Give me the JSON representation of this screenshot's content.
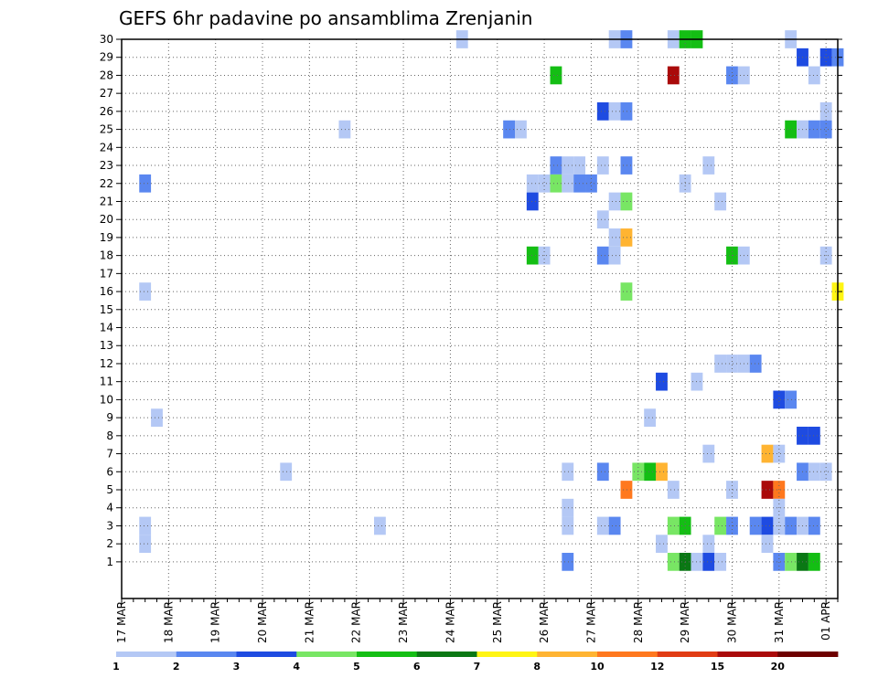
{
  "chart_data": {
    "type": "heatmap",
    "title": "GEFS 6hr padavine po ansamblima Zrenjanin",
    "ylabel": "",
    "xlabel": "",
    "y_range": [
      0,
      30
    ],
    "y_ticks": [
      "30",
      "29",
      "28",
      "27",
      "26",
      "25",
      "24",
      "23",
      "22",
      "21",
      "20",
      "19",
      "18",
      "17",
      "16",
      "15",
      "14",
      "13",
      "12",
      "11",
      "10",
      "9",
      "8",
      "7",
      "6",
      "5",
      "4",
      "3",
      "2",
      "1"
    ],
    "x_ticks": [
      "17 MAR",
      "18 MAR",
      "19 MAR",
      "20 MAR",
      "21 MAR",
      "22 MAR",
      "23 MAR",
      "24 MAR",
      "25 MAR",
      "26 MAR",
      "27 MAR",
      "28 MAR",
      "29 MAR",
      "30 MAR",
      "31 MAR",
      "01 APR"
    ],
    "x_range_steps": [
      0,
      61
    ],
    "grid": true,
    "legend": {
      "placement": "bottom",
      "levels": [
        "1",
        "2",
        "3",
        "4",
        "5",
        "6",
        "7",
        "8",
        "10",
        "12",
        "15",
        "20"
      ],
      "colors": [
        "#b4c8f5",
        "#5a87f0",
        "#1e4be1",
        "#78e664",
        "#14be14",
        "#0a7814",
        "#fff514",
        "#ffb432",
        "#ff781e",
        "#e13c14",
        "#aa0a0a",
        "#6e0000"
      ]
    },
    "cells": [
      {
        "m": 30,
        "s": 29,
        "c": 1
      },
      {
        "m": 30,
        "s": 42,
        "c": 1
      },
      {
        "m": 30,
        "s": 43,
        "c": 2
      },
      {
        "m": 30,
        "s": 47,
        "c": 1
      },
      {
        "m": 30,
        "s": 48,
        "c": 5
      },
      {
        "m": 30,
        "s": 49,
        "c": 5
      },
      {
        "m": 30,
        "s": 57,
        "c": 1
      },
      {
        "m": 29,
        "s": 58,
        "c": 3
      },
      {
        "m": 29,
        "s": 60,
        "c": 3
      },
      {
        "m": 29,
        "s": 61,
        "c": 2
      },
      {
        "m": 28,
        "s": 37,
        "c": 5
      },
      {
        "m": 28,
        "s": 47,
        "c": 11
      },
      {
        "m": 28,
        "s": 52,
        "c": 2
      },
      {
        "m": 28,
        "s": 53,
        "c": 1
      },
      {
        "m": 28,
        "s": 59,
        "c": 1
      },
      {
        "m": 26,
        "s": 41,
        "c": 3
      },
      {
        "m": 26,
        "s": 42,
        "c": 1
      },
      {
        "m": 26,
        "s": 43,
        "c": 2
      },
      {
        "m": 26,
        "s": 60,
        "c": 1
      },
      {
        "m": 25,
        "s": 19,
        "c": 1
      },
      {
        "m": 25,
        "s": 33,
        "c": 2
      },
      {
        "m": 25,
        "s": 34,
        "c": 1
      },
      {
        "m": 25,
        "s": 57,
        "c": 5
      },
      {
        "m": 25,
        "s": 58,
        "c": 1
      },
      {
        "m": 25,
        "s": 59,
        "c": 2
      },
      {
        "m": 25,
        "s": 60,
        "c": 2
      },
      {
        "m": 23,
        "s": 37,
        "c": 2
      },
      {
        "m": 23,
        "s": 38,
        "c": 1
      },
      {
        "m": 23,
        "s": 39,
        "c": 1
      },
      {
        "m": 23,
        "s": 41,
        "c": 1
      },
      {
        "m": 23,
        "s": 43,
        "c": 2
      },
      {
        "m": 23,
        "s": 50,
        "c": 1
      },
      {
        "m": 22,
        "s": 2,
        "c": 2
      },
      {
        "m": 22,
        "s": 35,
        "c": 1
      },
      {
        "m": 22,
        "s": 36,
        "c": 1
      },
      {
        "m": 22,
        "s": 37,
        "c": 4
      },
      {
        "m": 22,
        "s": 38,
        "c": 1
      },
      {
        "m": 22,
        "s": 39,
        "c": 2
      },
      {
        "m": 22,
        "s": 40,
        "c": 2
      },
      {
        "m": 22,
        "s": 48,
        "c": 1
      },
      {
        "m": 21,
        "s": 35,
        "c": 3
      },
      {
        "m": 21,
        "s": 42,
        "c": 1
      },
      {
        "m": 21,
        "s": 43,
        "c": 4
      },
      {
        "m": 21,
        "s": 51,
        "c": 1
      },
      {
        "m": 20,
        "s": 41,
        "c": 1
      },
      {
        "m": 19,
        "s": 42,
        "c": 1
      },
      {
        "m": 19,
        "s": 43,
        "c": 8
      },
      {
        "m": 18,
        "s": 35,
        "c": 5
      },
      {
        "m": 18,
        "s": 36,
        "c": 1
      },
      {
        "m": 18,
        "s": 41,
        "c": 2
      },
      {
        "m": 18,
        "s": 42,
        "c": 1
      },
      {
        "m": 18,
        "s": 52,
        "c": 5
      },
      {
        "m": 18,
        "s": 53,
        "c": 1
      },
      {
        "m": 18,
        "s": 60,
        "c": 1
      },
      {
        "m": 16,
        "s": 2,
        "c": 1
      },
      {
        "m": 16,
        "s": 43,
        "c": 4
      },
      {
        "m": 16,
        "s": 61,
        "c": 7
      },
      {
        "m": 12,
        "s": 51,
        "c": 1
      },
      {
        "m": 12,
        "s": 52,
        "c": 1
      },
      {
        "m": 12,
        "s": 53,
        "c": 1
      },
      {
        "m": 12,
        "s": 54,
        "c": 2
      },
      {
        "m": 11,
        "s": 46,
        "c": 3
      },
      {
        "m": 11,
        "s": 49,
        "c": 1
      },
      {
        "m": 10,
        "s": 56,
        "c": 3
      },
      {
        "m": 10,
        "s": 57,
        "c": 2
      },
      {
        "m": 9,
        "s": 3,
        "c": 1
      },
      {
        "m": 9,
        "s": 45,
        "c": 1
      },
      {
        "m": 8,
        "s": 58,
        "c": 3
      },
      {
        "m": 8,
        "s": 59,
        "c": 3
      },
      {
        "m": 7,
        "s": 50,
        "c": 1
      },
      {
        "m": 7,
        "s": 55,
        "c": 8
      },
      {
        "m": 7,
        "s": 56,
        "c": 1
      },
      {
        "m": 6,
        "s": 14,
        "c": 1
      },
      {
        "m": 6,
        "s": 38,
        "c": 1
      },
      {
        "m": 6,
        "s": 41,
        "c": 2
      },
      {
        "m": 6,
        "s": 44,
        "c": 4
      },
      {
        "m": 6,
        "s": 45,
        "c": 5
      },
      {
        "m": 6,
        "s": 46,
        "c": 8
      },
      {
        "m": 6,
        "s": 58,
        "c": 2
      },
      {
        "m": 6,
        "s": 59,
        "c": 1
      },
      {
        "m": 6,
        "s": 60,
        "c": 1
      },
      {
        "m": 5,
        "s": 43,
        "c": 9
      },
      {
        "m": 5,
        "s": 47,
        "c": 1
      },
      {
        "m": 5,
        "s": 52,
        "c": 1
      },
      {
        "m": 5,
        "s": 55,
        "c": 11
      },
      {
        "m": 5,
        "s": 56,
        "c": 9
      },
      {
        "m": 4,
        "s": 38,
        "c": 1
      },
      {
        "m": 4,
        "s": 56,
        "c": 1
      },
      {
        "m": 3,
        "s": 2,
        "c": 1
      },
      {
        "m": 3,
        "s": 22,
        "c": 1
      },
      {
        "m": 3,
        "s": 38,
        "c": 1
      },
      {
        "m": 3,
        "s": 41,
        "c": 1
      },
      {
        "m": 3,
        "s": 42,
        "c": 2
      },
      {
        "m": 3,
        "s": 47,
        "c": 4
      },
      {
        "m": 3,
        "s": 48,
        "c": 5
      },
      {
        "m": 3,
        "s": 51,
        "c": 4
      },
      {
        "m": 3,
        "s": 52,
        "c": 2
      },
      {
        "m": 3,
        "s": 54,
        "c": 2
      },
      {
        "m": 3,
        "s": 55,
        "c": 3
      },
      {
        "m": 3,
        "s": 56,
        "c": 1
      },
      {
        "m": 3,
        "s": 57,
        "c": 2
      },
      {
        "m": 3,
        "s": 58,
        "c": 1
      },
      {
        "m": 3,
        "s": 59,
        "c": 2
      },
      {
        "m": 2,
        "s": 2,
        "c": 1
      },
      {
        "m": 2,
        "s": 46,
        "c": 1
      },
      {
        "m": 2,
        "s": 50,
        "c": 1
      },
      {
        "m": 2,
        "s": 55,
        "c": 1
      },
      {
        "m": 1,
        "s": 38,
        "c": 2
      },
      {
        "m": 1,
        "s": 47,
        "c": 4
      },
      {
        "m": 1,
        "s": 48,
        "c": 6
      },
      {
        "m": 1,
        "s": 49,
        "c": 1
      },
      {
        "m": 1,
        "s": 50,
        "c": 3
      },
      {
        "m": 1,
        "s": 51,
        "c": 1
      },
      {
        "m": 1,
        "s": 56,
        "c": 2
      },
      {
        "m": 1,
        "s": 57,
        "c": 4
      },
      {
        "m": 1,
        "s": 58,
        "c": 6
      },
      {
        "m": 1,
        "s": 59,
        "c": 5
      }
    ]
  }
}
